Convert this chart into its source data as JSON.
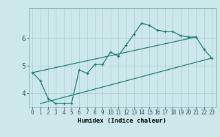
{
  "title": "",
  "xlabel": "Humidex (Indice chaleur)",
  "bg_color": "#cce8ea",
  "grid_color": "#aacccc",
  "line_color": "#1a7a6e",
  "xlim": [
    -0.5,
    23.5
  ],
  "ylim": [
    3.5,
    7.1
  ],
  "xticks": [
    0,
    1,
    2,
    3,
    4,
    5,
    6,
    7,
    8,
    9,
    10,
    11,
    12,
    13,
    14,
    15,
    16,
    17,
    18,
    19,
    20,
    21,
    22,
    23
  ],
  "yticks": [
    4,
    5,
    6
  ],
  "main_x": [
    0,
    1,
    2,
    3,
    4,
    5,
    6,
    7,
    8,
    9,
    10,
    11,
    12,
    13,
    14,
    15,
    16,
    17,
    18,
    19,
    20,
    21,
    22,
    23
  ],
  "main_y": [
    4.75,
    4.45,
    3.8,
    3.62,
    3.62,
    3.62,
    4.85,
    4.72,
    5.05,
    5.05,
    5.5,
    5.35,
    5.75,
    6.15,
    6.55,
    6.48,
    6.3,
    6.25,
    6.25,
    6.1,
    6.05,
    6.05,
    5.6,
    5.28
  ],
  "min_line_x": [
    1,
    23
  ],
  "min_line_y": [
    3.62,
    5.28
  ],
  "max_line_x": [
    0,
    21
  ],
  "max_line_y": [
    4.75,
    6.05
  ],
  "tick_fontsize": 5.5,
  "xlabel_fontsize": 6.5
}
